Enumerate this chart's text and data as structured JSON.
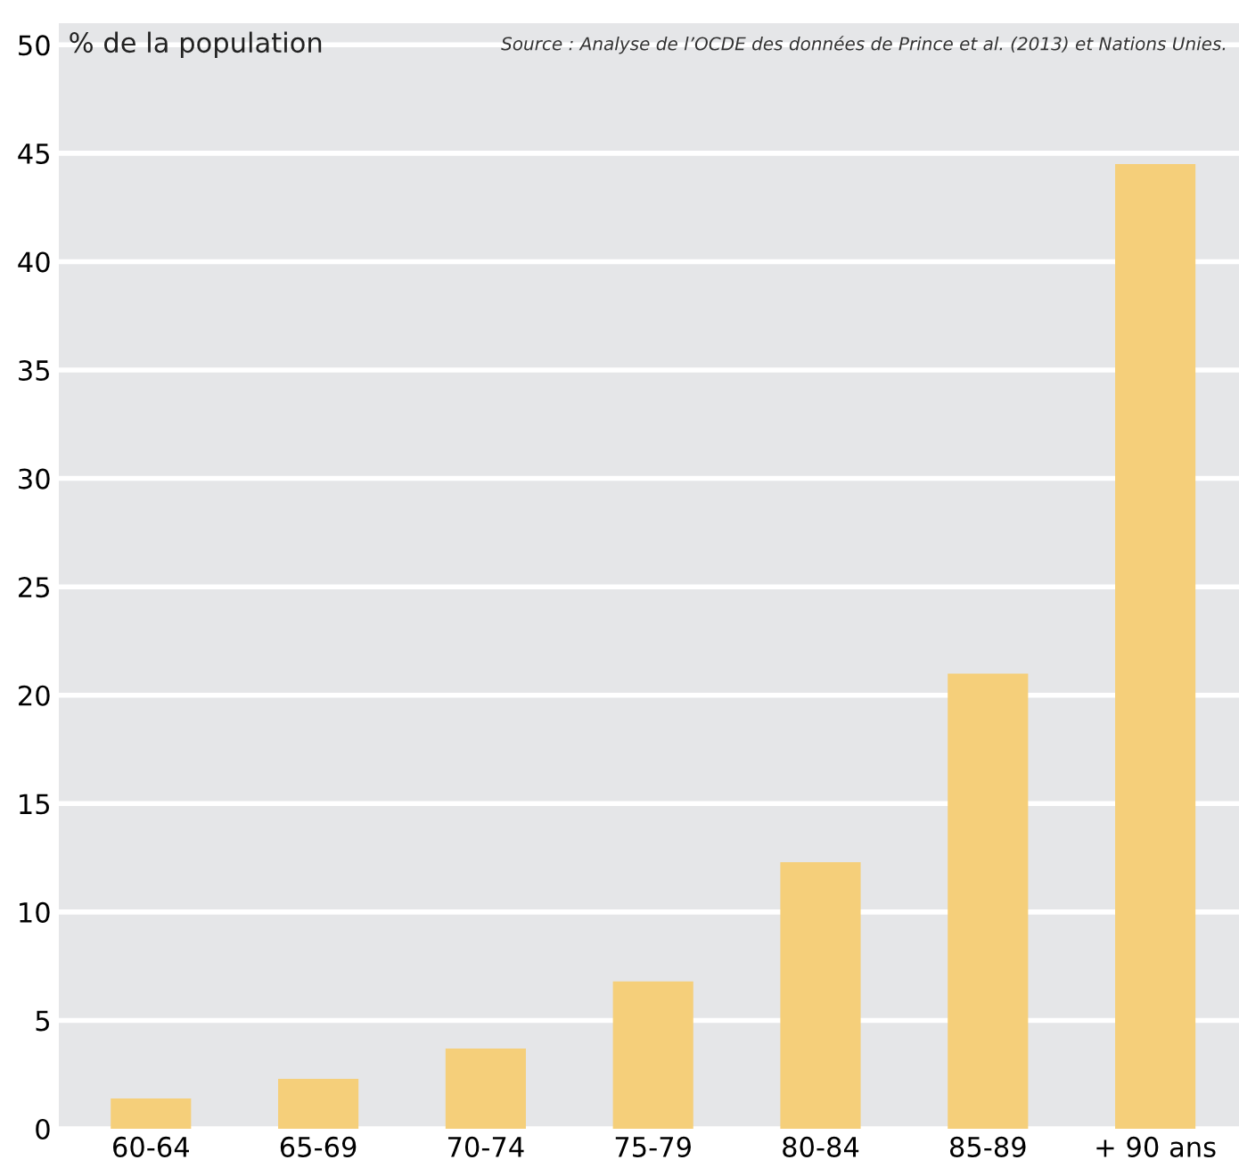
{
  "chart_data": {
    "type": "bar",
    "ylabel": "% de la population",
    "annotations": [
      "Source : Analyse de l’OCDE des données de Prince et al. (2013) et Nations Unies."
    ],
    "categories": [
      "60-64",
      "65-69",
      "70-74",
      "75-79",
      "80-84",
      "85-89",
      "+ 90 ans"
    ],
    "values": [
      1.4,
      2.3,
      3.7,
      6.8,
      12.3,
      21.0,
      44.5
    ],
    "color": "#f5cf7a",
    "ylim": [
      0,
      51
    ],
    "yticks": [
      0,
      5,
      10,
      15,
      20,
      25,
      30,
      35,
      40,
      45,
      50
    ],
    "grid": "y"
  }
}
